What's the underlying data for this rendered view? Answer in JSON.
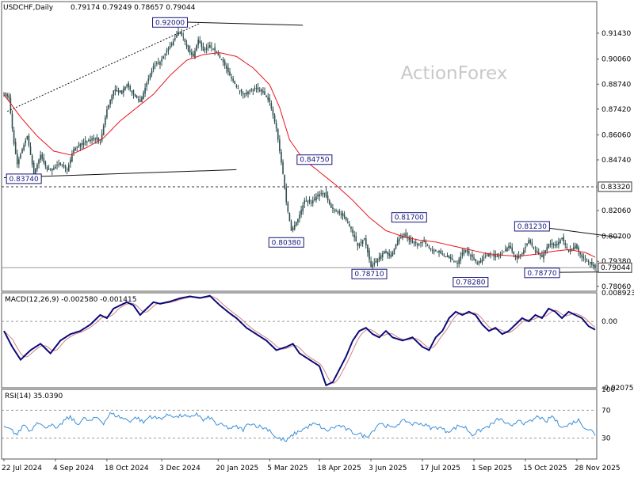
{
  "header": {
    "symbol": "USDCHF,Daily",
    "ohlc": "0.79174 0.79249 0.78657 0.79044"
  },
  "watermark": "ActionForex",
  "colors": {
    "background": "#ffffff",
    "candle": "#2f4f4f",
    "ema": "#e8141b",
    "hline": "#303030",
    "macd": "#0a0a7a",
    "signal": "#d08080",
    "rsi": "#3a8fd8",
    "watermark": "#c8c8c8"
  },
  "chart_data": [
    {
      "type": "candlestick",
      "title": "USDCHF,Daily",
      "ylim": [
        0.778,
        0.931
      ],
      "y_ticks": [
        "0.91430",
        "0.90060",
        "0.88740",
        "0.87420",
        "0.86060",
        "0.84740",
        "0.83320",
        "0.82060",
        "0.80700",
        "0.79380",
        "0.79044",
        "0.78060"
      ],
      "x_ticks": [
        "22 Jul 2024",
        "4 Sep 2024",
        "18 Oct 2024",
        "3 Dec 2024",
        "20 Jan 2025",
        "5 Mar 2025",
        "18 Apr 2025",
        "3 Jun 2025",
        "17 Jul 2025",
        "1 Sep 2025",
        "15 Oct 2025",
        "28 Nov 2025"
      ],
      "x_tick_index": [
        0,
        31,
        62,
        95,
        129,
        160,
        190,
        221,
        252,
        283,
        314,
        345
      ],
      "close_anchors": [
        [
          0,
          0.883
        ],
        [
          3,
          0.88
        ],
        [
          6,
          0.856
        ],
        [
          8,
          0.845
        ],
        [
          11,
          0.853
        ],
        [
          14,
          0.86
        ],
        [
          18,
          0.84
        ],
        [
          22,
          0.85
        ],
        [
          26,
          0.842
        ],
        [
          30,
          0.843
        ],
        [
          34,
          0.846
        ],
        [
          38,
          0.842
        ],
        [
          42,
          0.853
        ],
        [
          46,
          0.856
        ],
        [
          50,
          0.857
        ],
        [
          54,
          0.859
        ],
        [
          58,
          0.857
        ],
        [
          62,
          0.874
        ],
        [
          66,
          0.884
        ],
        [
          70,
          0.883
        ],
        [
          74,
          0.887
        ],
        [
          78,
          0.882
        ],
        [
          82,
          0.878
        ],
        [
          86,
          0.888
        ],
        [
          90,
          0.897
        ],
        [
          94,
          0.899
        ],
        [
          98,
          0.905
        ],
        [
          102,
          0.91
        ],
        [
          105,
          0.915
        ],
        [
          108,
          0.912
        ],
        [
          111,
          0.905
        ],
        [
          114,
          0.902
        ],
        [
          117,
          0.911
        ],
        [
          120,
          0.905
        ],
        [
          124,
          0.908
        ],
        [
          128,
          0.904
        ],
        [
          132,
          0.899
        ],
        [
          136,
          0.892
        ],
        [
          140,
          0.886
        ],
        [
          144,
          0.882
        ],
        [
          148,
          0.884
        ],
        [
          152,
          0.885
        ],
        [
          156,
          0.883
        ],
        [
          160,
          0.878
        ],
        [
          164,
          0.864
        ],
        [
          168,
          0.84
        ],
        [
          170,
          0.825
        ],
        [
          173,
          0.81
        ],
        [
          177,
          0.816
        ],
        [
          181,
          0.826
        ],
        [
          185,
          0.825
        ],
        [
          189,
          0.829
        ],
        [
          193,
          0.83
        ],
        [
          197,
          0.822
        ],
        [
          201,
          0.82
        ],
        [
          205,
          0.817
        ],
        [
          209,
          0.811
        ],
        [
          213,
          0.802
        ],
        [
          217,
          0.806
        ],
        [
          221,
          0.791
        ],
        [
          225,
          0.795
        ],
        [
          229,
          0.799
        ],
        [
          233,
          0.796
        ],
        [
          237,
          0.805
        ],
        [
          241,
          0.808
        ],
        [
          245,
          0.804
        ],
        [
          249,
          0.803
        ],
        [
          253,
          0.804
        ],
        [
          257,
          0.8
        ],
        [
          261,
          0.799
        ],
        [
          265,
          0.797
        ],
        [
          269,
          0.795
        ],
        [
          273,
          0.793
        ],
        [
          277,
          0.8
        ],
        [
          281,
          0.797
        ],
        [
          285,
          0.793
        ],
        [
          288,
          0.795
        ],
        [
          292,
          0.798
        ],
        [
          296,
          0.796
        ],
        [
          300,
          0.798
        ],
        [
          304,
          0.802
        ],
        [
          308,
          0.796
        ],
        [
          312,
          0.798
        ],
        [
          316,
          0.805
        ],
        [
          320,
          0.799
        ],
        [
          324,
          0.796
        ],
        [
          328,
          0.803
        ],
        [
          332,
          0.802
        ],
        [
          336,
          0.806
        ],
        [
          340,
          0.799
        ],
        [
          344,
          0.802
        ],
        [
          348,
          0.796
        ],
        [
          352,
          0.7935
        ],
        [
          356,
          0.7904
        ]
      ],
      "ema_anchors": [
        [
          0,
          0.882
        ],
        [
          10,
          0.87
        ],
        [
          20,
          0.86
        ],
        [
          30,
          0.852
        ],
        [
          40,
          0.85
        ],
        [
          50,
          0.854
        ],
        [
          60,
          0.859
        ],
        [
          70,
          0.868
        ],
        [
          80,
          0.875
        ],
        [
          90,
          0.882
        ],
        [
          100,
          0.892
        ],
        [
          110,
          0.9
        ],
        [
          120,
          0.903
        ],
        [
          130,
          0.904
        ],
        [
          140,
          0.902
        ],
        [
          150,
          0.896
        ],
        [
          160,
          0.887
        ],
        [
          166,
          0.875
        ],
        [
          172,
          0.858
        ],
        [
          180,
          0.848
        ],
        [
          190,
          0.841
        ],
        [
          200,
          0.834
        ],
        [
          210,
          0.826
        ],
        [
          220,
          0.817
        ],
        [
          230,
          0.81
        ],
        [
          240,
          0.807
        ],
        [
          250,
          0.805
        ],
        [
          260,
          0.804
        ],
        [
          270,
          0.802
        ],
        [
          280,
          0.8
        ],
        [
          290,
          0.798
        ],
        [
          300,
          0.797
        ],
        [
          310,
          0.7965
        ],
        [
          320,
          0.7975
        ],
        [
          330,
          0.799
        ],
        [
          340,
          0.8
        ],
        [
          350,
          0.7985
        ],
        [
          356,
          0.796
        ]
      ],
      "levels": [
        {
          "value": 0.8332,
          "label": "0.83320",
          "style": "dashed"
        },
        {
          "value": 0.79044,
          "label": "0.79044",
          "style": "solid-grey"
        }
      ],
      "trendlines": [
        {
          "from": [
            0,
            0.838
          ],
          "to": [
            140,
            0.8422
          ],
          "style": "solid"
        },
        {
          "from": [
            2,
            0.873
          ],
          "to": [
            118,
            0.9195
          ],
          "style": "dotted"
        },
        {
          "from": [
            95,
            0.9205
          ],
          "to": [
            180,
            0.9185
          ],
          "style": "solid"
        },
        {
          "from": [
            320,
            0.8123
          ],
          "to": [
            372,
            0.8062
          ],
          "style": "solid"
        },
        {
          "from": [
            315,
            0.7878
          ],
          "to": [
            372,
            0.7883
          ],
          "style": "solid"
        }
      ],
      "annotations": [
        {
          "text": "0.92000",
          "i": 100,
          "value": 0.92
        },
        {
          "text": "0.83740",
          "i": 12,
          "value": 0.8374
        },
        {
          "text": "0.84750",
          "i": 187,
          "value": 0.8475
        },
        {
          "text": "0.80380",
          "i": 170,
          "value": 0.8038
        },
        {
          "text": "0.81700",
          "i": 244,
          "value": 0.817
        },
        {
          "text": "0.78710",
          "i": 220,
          "value": 0.7871
        },
        {
          "text": "0.78280",
          "i": 281,
          "value": 0.7828
        },
        {
          "text": "0.81230",
          "i": 318,
          "value": 0.8123
        },
        {
          "text": "0.78770",
          "i": 324,
          "value": 0.7877
        }
      ]
    },
    {
      "type": "line",
      "title": "MACD(12,26,9) -0.002580 -0.001415",
      "ylim": [
        -0.02076,
        0.00892
      ],
      "y_ticks": [
        "0.008923",
        "0.00",
        "-0.020759"
      ],
      "zero_label": "0.00",
      "macd_anchors": [
        [
          0,
          -0.003
        ],
        [
          5,
          -0.008
        ],
        [
          10,
          -0.012
        ],
        [
          16,
          -0.009
        ],
        [
          22,
          -0.007
        ],
        [
          28,
          -0.01
        ],
        [
          34,
          -0.006
        ],
        [
          40,
          -0.004
        ],
        [
          46,
          -0.003
        ],
        [
          52,
          -0.001
        ],
        [
          58,
          0.002
        ],
        [
          62,
          0.001
        ],
        [
          66,
          0.004
        ],
        [
          70,
          0.005
        ],
        [
          74,
          0.006
        ],
        [
          78,
          0.005
        ],
        [
          82,
          0.002
        ],
        [
          86,
          0.004
        ],
        [
          90,
          0.006
        ],
        [
          94,
          0.0055
        ],
        [
          100,
          0.0062
        ],
        [
          106,
          0.0072
        ],
        [
          112,
          0.0078
        ],
        [
          118,
          0.0073
        ],
        [
          124,
          0.008
        ],
        [
          130,
          0.005
        ],
        [
          136,
          0.0025
        ],
        [
          140,
          0.001
        ],
        [
          146,
          -0.002
        ],
        [
          152,
          -0.004
        ],
        [
          158,
          -0.006
        ],
        [
          164,
          -0.009
        ],
        [
          170,
          -0.008
        ],
        [
          174,
          -0.007
        ],
        [
          178,
          -0.01
        ],
        [
          184,
          -0.012
        ],
        [
          190,
          -0.014
        ],
        [
          194,
          -0.02
        ],
        [
          198,
          -0.019
        ],
        [
          202,
          -0.015
        ],
        [
          206,
          -0.011
        ],
        [
          210,
          -0.006
        ],
        [
          214,
          -0.003
        ],
        [
          218,
          -0.002
        ],
        [
          222,
          -0.004
        ],
        [
          226,
          -0.005
        ],
        [
          230,
          -0.003
        ],
        [
          234,
          -0.005
        ],
        [
          240,
          -0.006
        ],
        [
          246,
          -0.005
        ],
        [
          252,
          -0.008
        ],
        [
          256,
          -0.009
        ],
        [
          260,
          -0.005
        ],
        [
          264,
          -0.003
        ],
        [
          268,
          0.001
        ],
        [
          272,
          0.003
        ],
        [
          276,
          0.002
        ],
        [
          280,
          0.003
        ],
        [
          284,
          0.002
        ],
        [
          288,
          -0.001
        ],
        [
          292,
          -0.003
        ],
        [
          296,
          -0.002
        ],
        [
          300,
          -0.004
        ],
        [
          304,
          -0.003
        ],
        [
          308,
          -0.001
        ],
        [
          312,
          0.001
        ],
        [
          316,
          0.0
        ],
        [
          320,
          0.002
        ],
        [
          324,
          0.001
        ],
        [
          328,
          0.004
        ],
        [
          332,
          0.003
        ],
        [
          336,
          0.001
        ],
        [
          340,
          0.003
        ],
        [
          344,
          0.002
        ],
        [
          348,
          0.001
        ],
        [
          352,
          -0.0015
        ],
        [
          356,
          -0.0026
        ]
      ],
      "signal_lag": 5
    },
    {
      "type": "line",
      "title": "RSI(14) 35.0390",
      "ylim": [
        0,
        100
      ],
      "y_ticks": [
        "100",
        "70",
        "30",
        "0"
      ],
      "levels": [
        70,
        30
      ],
      "rsi_anchors": [
        [
          0,
          45
        ],
        [
          4,
          42
        ],
        [
          8,
          35
        ],
        [
          12,
          50
        ],
        [
          16,
          40
        ],
        [
          20,
          55
        ],
        [
          24,
          45
        ],
        [
          28,
          50
        ],
        [
          32,
          42
        ],
        [
          36,
          55
        ],
        [
          40,
          60
        ],
        [
          44,
          50
        ],
        [
          48,
          58
        ],
        [
          52,
          54
        ],
        [
          56,
          60
        ],
        [
          60,
          52
        ],
        [
          64,
          65
        ],
        [
          68,
          62
        ],
        [
          72,
          58
        ],
        [
          76,
          55
        ],
        [
          80,
          60
        ],
        [
          84,
          52
        ],
        [
          88,
          62
        ],
        [
          92,
          58
        ],
        [
          96,
          60
        ],
        [
          100,
          64
        ],
        [
          104,
          60
        ],
        [
          108,
          63
        ],
        [
          112,
          58
        ],
        [
          116,
          66
        ],
        [
          120,
          55
        ],
        [
          124,
          60
        ],
        [
          128,
          50
        ],
        [
          132,
          48
        ],
        [
          136,
          44
        ],
        [
          140,
          46
        ],
        [
          144,
          42
        ],
        [
          148,
          52
        ],
        [
          152,
          48
        ],
        [
          156,
          45
        ],
        [
          160,
          42
        ],
        [
          164,
          30
        ],
        [
          168,
          28
        ],
        [
          170,
          25
        ],
        [
          174,
          35
        ],
        [
          178,
          40
        ],
        [
          182,
          45
        ],
        [
          186,
          50
        ],
        [
          190,
          48
        ],
        [
          194,
          40
        ],
        [
          198,
          45
        ],
        [
          202,
          48
        ],
        [
          206,
          43
        ],
        [
          210,
          38
        ],
        [
          214,
          36
        ],
        [
          218,
          32
        ],
        [
          222,
          40
        ],
        [
          226,
          52
        ],
        [
          230,
          48
        ],
        [
          234,
          44
        ],
        [
          238,
          52
        ],
        [
          242,
          55
        ],
        [
          246,
          50
        ],
        [
          250,
          52
        ],
        [
          254,
          48
        ],
        [
          258,
          44
        ],
        [
          262,
          46
        ],
        [
          266,
          40
        ],
        [
          270,
          42
        ],
        [
          274,
          48
        ],
        [
          278,
          45
        ],
        [
          282,
          35
        ],
        [
          286,
          40
        ],
        [
          290,
          45
        ],
        [
          294,
          50
        ],
        [
          298,
          58
        ],
        [
          302,
          52
        ],
        [
          306,
          45
        ],
        [
          310,
          58
        ],
        [
          314,
          50
        ],
        [
          318,
          55
        ],
        [
          322,
          62
        ],
        [
          326,
          52
        ],
        [
          330,
          62
        ],
        [
          334,
          50
        ],
        [
          338,
          46
        ],
        [
          342,
          52
        ],
        [
          346,
          56
        ],
        [
          350,
          45
        ],
        [
          354,
          40
        ],
        [
          356,
          35
        ]
      ]
    }
  ]
}
